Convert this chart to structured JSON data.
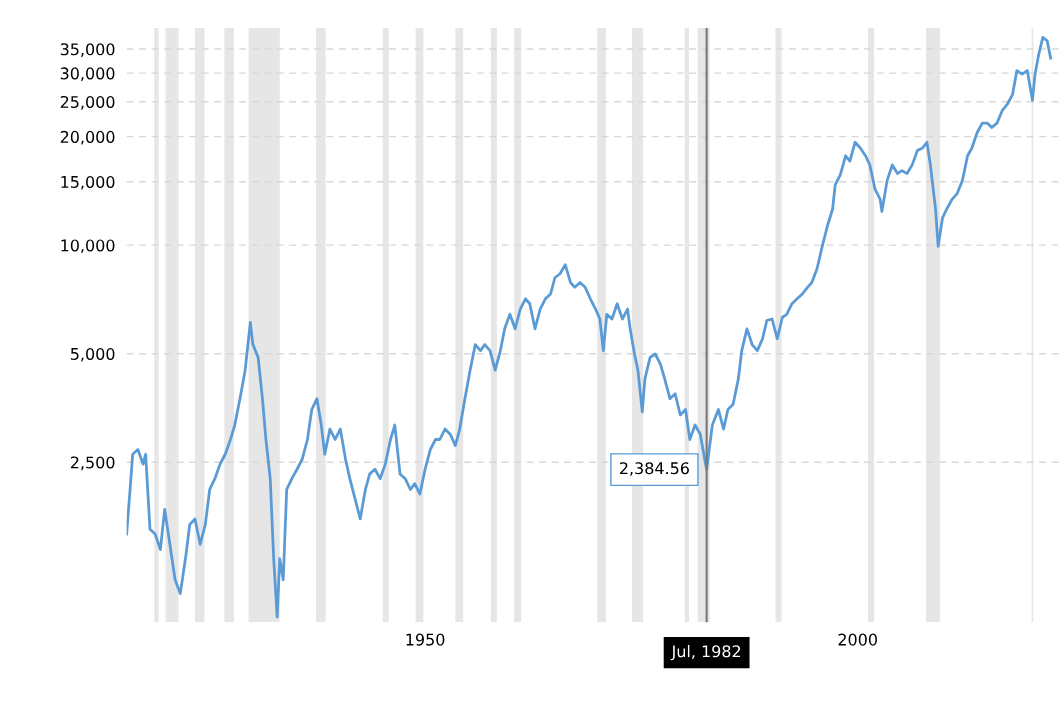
{
  "chart_data": {
    "type": "line",
    "log": "y",
    "x": [
      1915.5,
      1915.9,
      1916.2,
      1916.8,
      1917.4,
      1917.7,
      1918.2,
      1918.8,
      1919.4,
      1919.9,
      1920.5,
      1921.1,
      1921.7,
      1922.3,
      1922.8,
      1923.4,
      1924.0,
      1924.6,
      1925.1,
      1925.7,
      1926.3,
      1926.9,
      1927.5,
      1928.0,
      1928.6,
      1929.2,
      1929.8,
      1930.1,
      1930.7,
      1931.2,
      1931.6,
      1932.1,
      1932.5,
      1932.9,
      1933.2,
      1933.6,
      1934.0,
      1934.6,
      1935.2,
      1935.8,
      1936.4,
      1936.9,
      1937.5,
      1938.0,
      1938.4,
      1939.0,
      1939.6,
      1940.2,
      1940.8,
      1941.3,
      1941.9,
      1942.5,
      1943.1,
      1943.6,
      1944.2,
      1944.8,
      1945.4,
      1946.0,
      1946.5,
      1947.1,
      1947.7,
      1948.3,
      1948.8,
      1949.4,
      1950.0,
      1950.6,
      1951.2,
      1951.7,
      1952.3,
      1952.9,
      1953.5,
      1954.0,
      1954.6,
      1955.2,
      1955.8,
      1956.4,
      1956.9,
      1957.5,
      1958.1,
      1958.7,
      1959.2,
      1959.8,
      1960.4,
      1961.0,
      1961.6,
      1962.1,
      1962.7,
      1963.3,
      1963.9,
      1964.5,
      1965.0,
      1965.6,
      1966.2,
      1966.8,
      1967.3,
      1967.9,
      1968.5,
      1969.1,
      1969.7,
      1970.2,
      1970.6,
      1971.0,
      1971.6,
      1972.2,
      1972.8,
      1973.4,
      1973.7,
      1974.2,
      1974.6,
      1975.1,
      1975.4,
      1976.0,
      1976.6,
      1977.2,
      1977.7,
      1978.3,
      1978.9,
      1979.5,
      1980.1,
      1980.6,
      1981.2,
      1981.8,
      1982.54,
      1983.2,
      1983.9,
      1984.5,
      1985.0,
      1985.6,
      1986.2,
      1986.6,
      1987.2,
      1987.8,
      1988.4,
      1989.0,
      1989.5,
      1990.1,
      1990.7,
      1991.3,
      1991.8,
      1992.4,
      1993.0,
      1993.6,
      1994.2,
      1994.7,
      1995.3,
      1995.9,
      1996.5,
      1997.1,
      1997.4,
      1998.0,
      1998.6,
      1999.1,
      1999.7,
      2000.3,
      2000.9,
      2001.4,
      2002.0,
      2002.6,
      2002.8,
      2003.4,
      2004.0,
      2004.6,
      2005.1,
      2005.7,
      2006.3,
      2006.9,
      2007.5,
      2008.0,
      2008.4,
      2009.0,
      2009.3,
      2009.8,
      2010.3,
      2010.9,
      2011.5,
      2012.1,
      2012.7,
      2013.2,
      2013.8,
      2014.4,
      2015.0,
      2015.5,
      2016.1,
      2016.7,
      2017.3,
      2017.9,
      2018.4,
      2019.0,
      2019.6,
      2020.2,
      2020.5,
      2020.9,
      2021.4,
      2021.9,
      2022.3
    ],
    "series": [
      {
        "color": "#5b9bd5",
        "values": [
          1580,
          2100,
          2630,
          2710,
          2470,
          2630,
          1630,
          1580,
          1430,
          1850,
          1480,
          1180,
          1080,
          1350,
          1680,
          1740,
          1480,
          1680,
          2100,
          2250,
          2470,
          2630,
          2890,
          3170,
          3750,
          4500,
          6110,
          5300,
          4880,
          3750,
          2890,
          2250,
          1350,
          930,
          1350,
          1180,
          2100,
          2250,
          2390,
          2550,
          2890,
          3500,
          3750,
          3170,
          2630,
          3090,
          2890,
          3090,
          2550,
          2250,
          1980,
          1740,
          2100,
          2320,
          2390,
          2250,
          2470,
          2890,
          3170,
          2320,
          2250,
          2100,
          2180,
          2040,
          2390,
          2710,
          2890,
          2890,
          3090,
          2990,
          2780,
          3090,
          3750,
          4500,
          5300,
          5100,
          5300,
          5100,
          4500,
          5100,
          5860,
          6430,
          5860,
          6650,
          7100,
          6880,
          5860,
          6650,
          7100,
          7320,
          8120,
          8330,
          8830,
          7880,
          7640,
          7880,
          7640,
          7100,
          6650,
          6240,
          5100,
          6430,
          6240,
          6880,
          6240,
          6650,
          5860,
          4990,
          4500,
          3450,
          4250,
          4880,
          4990,
          4680,
          4250,
          3750,
          3870,
          3380,
          3500,
          2890,
          3170,
          2990,
          2384.56,
          3170,
          3500,
          3090,
          3500,
          3620,
          4250,
          5100,
          5860,
          5300,
          5100,
          5500,
          6180,
          6240,
          5500,
          6310,
          6430,
          6880,
          7100,
          7320,
          7640,
          7880,
          8600,
          9920,
          11300,
          12600,
          14700,
          15700,
          17700,
          17100,
          19300,
          18600,
          17700,
          16700,
          14300,
          13400,
          12400,
          15100,
          16700,
          15800,
          16100,
          15800,
          16700,
          18300,
          18600,
          19300,
          16700,
          12600,
          9920,
          11900,
          12600,
          13400,
          13900,
          15100,
          17700,
          18600,
          20500,
          21800,
          21800,
          21200,
          21800,
          23600,
          24600,
          26200,
          30500,
          29800,
          30500,
          25200,
          29800,
          33600,
          37700,
          36900,
          33000
        ]
      }
    ],
    "xlim": [
      1915.5,
      2023.6
    ],
    "ylim": [
      900,
      40000
    ],
    "xticks": [
      1950,
      2000
    ],
    "yticks": [
      {
        "value": 2500,
        "label": "2,500"
      },
      {
        "value": 5000,
        "label": "5,000"
      },
      {
        "value": 10000,
        "label": "10,000"
      },
      {
        "value": 15000,
        "label": "15,000"
      },
      {
        "value": 20000,
        "label": "20,000"
      },
      {
        "value": 25000,
        "label": "25,000"
      },
      {
        "value": 30000,
        "label": "30,000"
      },
      {
        "value": 35000,
        "label": "35,000"
      }
    ],
    "grid": "y",
    "line_style": "solid",
    "marker": "none",
    "legend": false,
    "bands": [
      {
        "axis": "x",
        "from": 1918.7,
        "to": 1919.2,
        "color": "#e6e6e6"
      },
      {
        "axis": "x",
        "from": 1920.0,
        "to": 1921.5,
        "color": "#e6e6e6"
      },
      {
        "axis": "x",
        "from": 1923.4,
        "to": 1924.5,
        "color": "#e6e6e6"
      },
      {
        "axis": "x",
        "from": 1926.8,
        "to": 1927.9,
        "color": "#e6e6e6"
      },
      {
        "axis": "x",
        "from": 1929.6,
        "to": 1933.2,
        "color": "#e6e6e6"
      },
      {
        "axis": "x",
        "from": 1937.4,
        "to": 1938.5,
        "color": "#e6e6e6"
      },
      {
        "axis": "x",
        "from": 1945.1,
        "to": 1945.8,
        "color": "#e6e6e6"
      },
      {
        "axis": "x",
        "from": 1948.9,
        "to": 1949.8,
        "color": "#e6e6e6"
      },
      {
        "axis": "x",
        "from": 1953.5,
        "to": 1954.4,
        "color": "#e6e6e6"
      },
      {
        "axis": "x",
        "from": 1957.6,
        "to": 1958.3,
        "color": "#e6e6e6"
      },
      {
        "axis": "x",
        "from": 1960.3,
        "to": 1961.1,
        "color": "#e6e6e6"
      },
      {
        "axis": "x",
        "from": 1969.9,
        "to": 1970.9,
        "color": "#e6e6e6"
      },
      {
        "axis": "x",
        "from": 1973.9,
        "to": 1975.2,
        "color": "#e6e6e6"
      },
      {
        "axis": "x",
        "from": 1980.0,
        "to": 1980.5,
        "color": "#e6e6e6"
      },
      {
        "axis": "x",
        "from": 1981.5,
        "to": 1982.9,
        "color": "#e6e6e6"
      },
      {
        "axis": "x",
        "from": 1990.5,
        "to": 1991.2,
        "color": "#e6e6e6"
      },
      {
        "axis": "x",
        "from": 2001.2,
        "to": 2001.9,
        "color": "#e6e6e6"
      },
      {
        "axis": "x",
        "from": 2007.9,
        "to": 2009.5,
        "color": "#e6e6e6"
      },
      {
        "axis": "x",
        "from": 2020.1,
        "to": 2020.3,
        "color": "#e6e6e6"
      }
    ],
    "ref_lines": [
      {
        "axis": "x",
        "value": 1982.54,
        "label": "Jul, 1982",
        "color": "#777777"
      }
    ],
    "annotations": [
      {
        "text": "2,384.56",
        "x": 1982.54,
        "y": 2384.56
      }
    ]
  }
}
